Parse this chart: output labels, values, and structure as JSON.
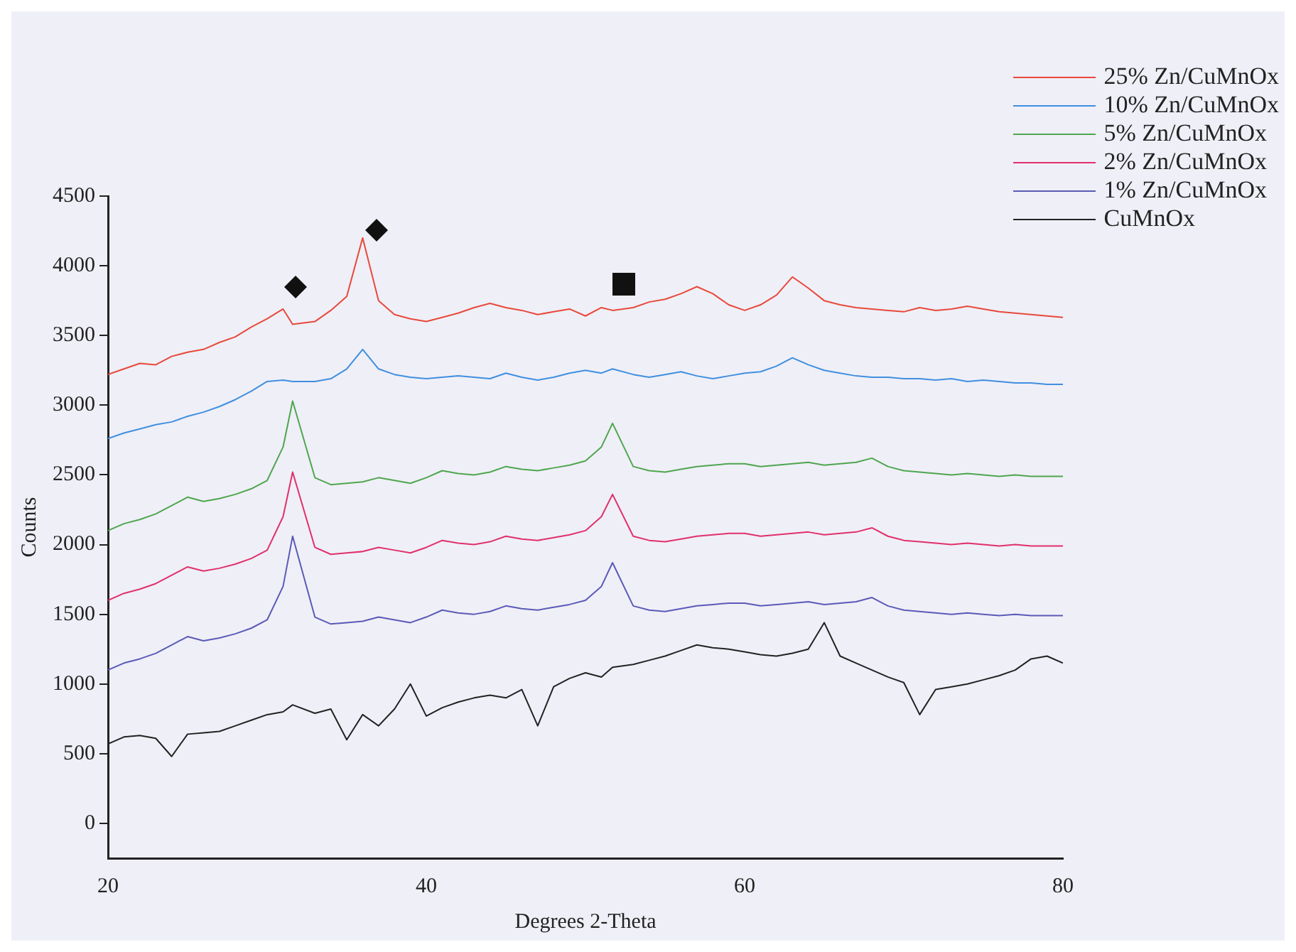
{
  "chart_data": {
    "type": "line",
    "xlabel": "Degrees 2-Theta",
    "ylabel": "Counts",
    "x": [
      20,
      21,
      22,
      23,
      24,
      25,
      26,
      27,
      28,
      29,
      30,
      31,
      31.6,
      33,
      34,
      35,
      36,
      37,
      38,
      39,
      40,
      41,
      42,
      43,
      44,
      45,
      46,
      47,
      48,
      49,
      50,
      51,
      51.7,
      53,
      54,
      55,
      56,
      57,
      58,
      59,
      60,
      61,
      62,
      63,
      64,
      65,
      66,
      67,
      68,
      69,
      70,
      71,
      72,
      73,
      74,
      75,
      76,
      77,
      78,
      79,
      80
    ],
    "series": [
      {
        "name": "25% Zn/CuMnOx",
        "color": "#e8493a",
        "values": [
          3220,
          3260,
          3300,
          3290,
          3350,
          3380,
          3400,
          3450,
          3490,
          3560,
          3620,
          3690,
          3580,
          3600,
          3680,
          3780,
          4200,
          3750,
          3650,
          3620,
          3600,
          3630,
          3660,
          3700,
          3730,
          3700,
          3680,
          3650,
          3670,
          3690,
          3640,
          3700,
          3680,
          3700,
          3740,
          3760,
          3800,
          3850,
          3800,
          3720,
          3680,
          3720,
          3790,
          3920,
          3840,
          3750,
          3720,
          3700,
          3690,
          3680,
          3670,
          3700,
          3680,
          3690,
          3710,
          3690,
          3670,
          3660,
          3650,
          3640,
          3630
        ]
      },
      {
        "name": "10% Zn/CuMnOx",
        "color": "#3f8fe0",
        "values": [
          2760,
          2800,
          2830,
          2860,
          2880,
          2920,
          2950,
          2990,
          3040,
          3100,
          3170,
          3180,
          3170,
          3170,
          3190,
          3260,
          3400,
          3260,
          3220,
          3200,
          3190,
          3200,
          3210,
          3200,
          3190,
          3230,
          3200,
          3180,
          3200,
          3230,
          3250,
          3230,
          3260,
          3220,
          3200,
          3220,
          3240,
          3210,
          3190,
          3210,
          3230,
          3240,
          3280,
          3340,
          3290,
          3250,
          3230,
          3210,
          3200,
          3200,
          3190,
          3190,
          3180,
          3190,
          3170,
          3180,
          3170,
          3160,
          3160,
          3150,
          3150
        ]
      },
      {
        "name": "5% Zn/CuMnOx",
        "color": "#4ea64e",
        "values": [
          2100,
          2150,
          2180,
          2220,
          2280,
          2340,
          2310,
          2330,
          2360,
          2400,
          2460,
          2700,
          3030,
          2480,
          2430,
          2440,
          2450,
          2480,
          2460,
          2440,
          2480,
          2530,
          2510,
          2500,
          2520,
          2560,
          2540,
          2530,
          2550,
          2570,
          2600,
          2700,
          2870,
          2560,
          2530,
          2520,
          2540,
          2560,
          2570,
          2580,
          2580,
          2560,
          2570,
          2580,
          2590,
          2570,
          2580,
          2590,
          2620,
          2560,
          2530,
          2520,
          2510,
          2500,
          2510,
          2500,
          2490,
          2500,
          2490,
          2490,
          2490
        ]
      },
      {
        "name": "2% Zn/CuMnOx",
        "color": "#e0306a",
        "values": [
          1600,
          1650,
          1680,
          1720,
          1780,
          1840,
          1810,
          1830,
          1860,
          1900,
          1960,
          2200,
          2520,
          1980,
          1930,
          1940,
          1950,
          1980,
          1960,
          1940,
          1980,
          2030,
          2010,
          2000,
          2020,
          2060,
          2040,
          2030,
          2050,
          2070,
          2100,
          2200,
          2360,
          2060,
          2030,
          2020,
          2040,
          2060,
          2070,
          2080,
          2080,
          2060,
          2070,
          2080,
          2090,
          2070,
          2080,
          2090,
          2120,
          2060,
          2030,
          2020,
          2010,
          2000,
          2010,
          2000,
          1990,
          2000,
          1990,
          1990,
          1990
        ]
      },
      {
        "name": "1% Zn/CuMnOx",
        "color": "#5a5ab8",
        "values": [
          1100,
          1150,
          1180,
          1220,
          1280,
          1340,
          1310,
          1330,
          1360,
          1400,
          1460,
          1700,
          2060,
          1480,
          1430,
          1440,
          1450,
          1480,
          1460,
          1440,
          1480,
          1530,
          1510,
          1500,
          1520,
          1560,
          1540,
          1530,
          1550,
          1570,
          1600,
          1700,
          1870,
          1560,
          1530,
          1520,
          1540,
          1560,
          1570,
          1580,
          1580,
          1560,
          1570,
          1580,
          1590,
          1570,
          1580,
          1590,
          1620,
          1560,
          1530,
          1520,
          1510,
          1500,
          1510,
          1500,
          1490,
          1500,
          1490,
          1490,
          1490
        ]
      },
      {
        "name": "CuMnOx",
        "color": "#222222",
        "values": [
          570,
          620,
          630,
          610,
          480,
          640,
          650,
          660,
          700,
          740,
          780,
          800,
          850,
          790,
          820,
          600,
          780,
          700,
          820,
          1000,
          770,
          830,
          870,
          900,
          920,
          900,
          960,
          700,
          980,
          1040,
          1080,
          1050,
          1120,
          1140,
          1170,
          1200,
          1240,
          1280,
          1260,
          1250,
          1230,
          1210,
          1200,
          1220,
          1250,
          1440,
          1200,
          1150,
          1100,
          1050,
          1010,
          780,
          960,
          980,
          1000,
          1030,
          1060,
          1100,
          1180,
          1200,
          1150
        ]
      }
    ],
    "xlim": [
      20,
      80
    ],
    "xticks": [
      20,
      40,
      60,
      80
    ],
    "ylim": [
      -250,
      4500
    ],
    "yticks": [
      0,
      500,
      1000,
      1500,
      2000,
      2500,
      3000,
      3500,
      4000,
      4500
    ],
    "grid": false,
    "legend": "top right",
    "marker": "none",
    "line_style": "solid"
  }
}
